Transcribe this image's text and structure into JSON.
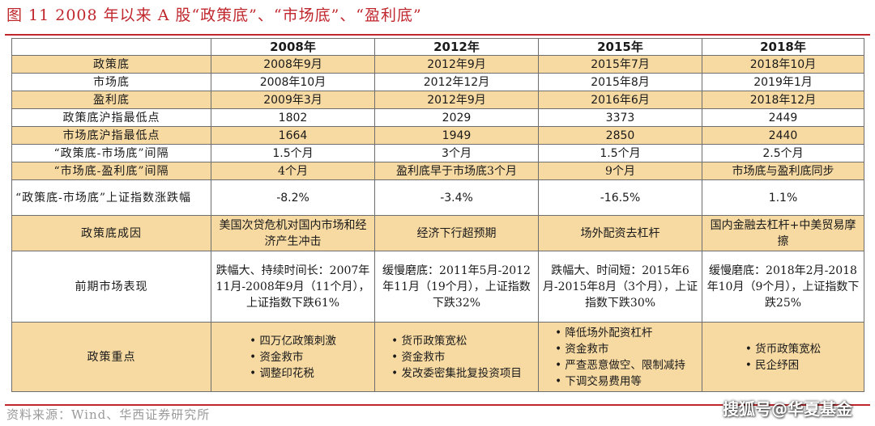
{
  "title": "图 11  2008 年以来 A 股“政策底”、“市场底”、“盈利底”",
  "source": "资料来源：Wind、华西证券研究所",
  "watermark": "搜狐号@华夏基金",
  "colors": {
    "accent": "#c0272d",
    "tan": "#f7d9a2",
    "border": "#6e6e6e"
  },
  "table": {
    "header": [
      "",
      "2008年",
      "2012年",
      "2015年",
      "2018年"
    ],
    "rows": [
      {
        "label": "政策底",
        "cells": [
          "2008年9月",
          "2012年9月",
          "2015年7月",
          "2018年10月"
        ]
      },
      {
        "label": "市场底",
        "cells": [
          "2008年10月",
          "2012年12月",
          "2015年8月",
          "2019年1月"
        ]
      },
      {
        "label": "盈利底",
        "cells": [
          "2009年3月",
          "2012年9月",
          "2016年6月",
          "2018年12月"
        ]
      },
      {
        "label": "政策底沪指最低点",
        "cells": [
          "1802",
          "2029",
          "3373",
          "2449"
        ]
      },
      {
        "label": "市场底沪指最低点",
        "cells": [
          "1664",
          "1949",
          "2850",
          "2440"
        ]
      },
      {
        "label": "“政策底-市场底”间隔",
        "cells": [
          "1.5个月",
          "3个月",
          "1.5个月",
          "2.5个月"
        ]
      },
      {
        "label": "“市场底-盈利底”间隔",
        "cells": [
          "4个月",
          "盈利底早于市场底3个月",
          "9个月",
          "市场底与盈利底同步"
        ]
      },
      {
        "label": "“政策底-市场底”上证指数涨跌幅",
        "cells": [
          "-8.2%",
          "-3.4%",
          "-16.5%",
          "1.1%"
        ]
      },
      {
        "label": "政策底成因",
        "cells": [
          "美国次贷危机对国内市场和经济产生冲击",
          "经济下行超预期",
          "场外配资去杠杆",
          "国内金融去杠杆+中美贸易摩擦"
        ]
      },
      {
        "label": "前期市场表现",
        "cells": [
          "跌幅大、持续时间长：2007年11月-2008年9月（11个月），上证指数下跌61%",
          "缓慢磨底：2011年5月-2012年11月（19个月），上证指数下跌32%",
          "跌幅大、时间短：2015年6月-2015年8月（3个月），上证指数下跌30%",
          "缓慢磨底：2018年2月-2018年10月（9个月），上证指数下跌25%"
        ]
      },
      {
        "label": "政策重点",
        "cells": [
          [
            "• 四万亿政策刺激",
            "• 资金救市",
            "• 调整印花税"
          ],
          [
            "• 货币政策宽松",
            "• 资金救市",
            "• 发改委密集批复投资项目"
          ],
          [
            "• 降低场外配资杠杆",
            "• 资金救市",
            "• 严查恶意做空、限制减持",
            "• 下调交易费用等"
          ],
          [
            "• 货币政策宽松",
            "• 民企纾困"
          ]
        ]
      }
    ]
  }
}
